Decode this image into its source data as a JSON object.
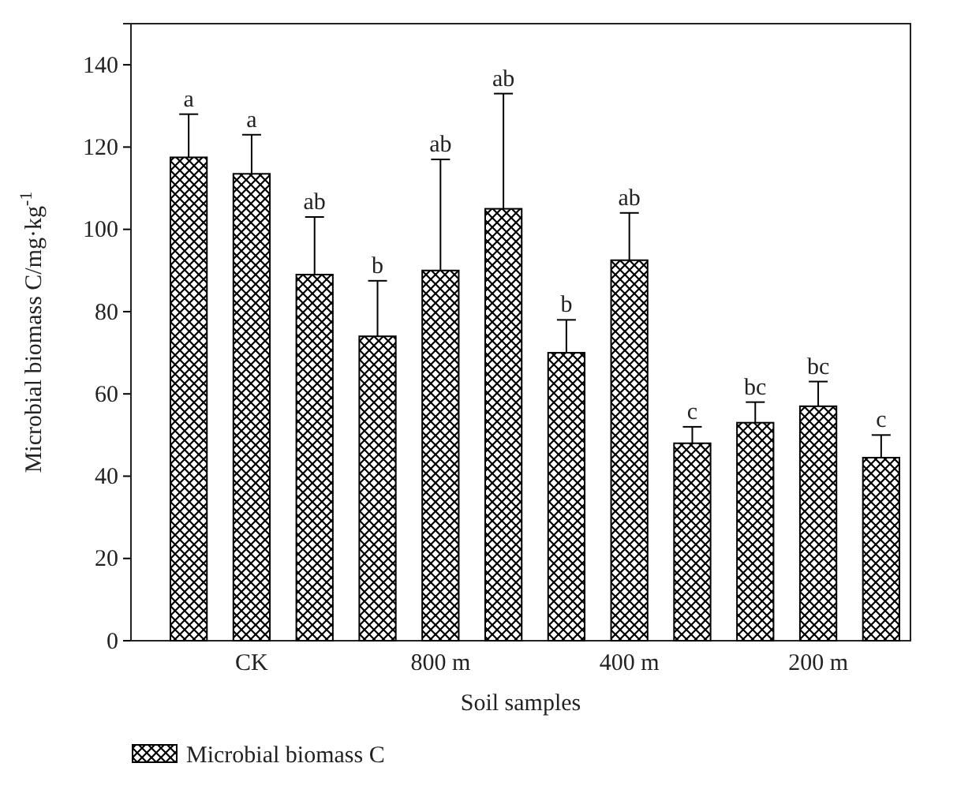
{
  "chart_data": {
    "type": "bar",
    "xlabel": "Soil samples",
    "ylabel": "Microbial biomass C/mg·kg$^{-1}$",
    "categories": [
      null,
      "CK",
      null,
      null,
      "800 m",
      null,
      null,
      "400 m",
      null,
      null,
      "200 m",
      null
    ],
    "series": [
      {
        "name": "Microbial biomass C",
        "color": "#000000",
        "values": [
          117.5,
          113.5,
          89,
          74,
          90,
          105,
          70,
          92.5,
          48,
          53,
          57,
          44.5
        ],
        "errors": [
          [
            117.5,
            128
          ],
          [
            113.5,
            123
          ],
          [
            89,
            103
          ],
          [
            74,
            87.5
          ],
          [
            90,
            117
          ],
          [
            105,
            133
          ],
          [
            70,
            78
          ],
          [
            92.5,
            104
          ],
          [
            48,
            52
          ],
          [
            53,
            58
          ],
          [
            57,
            63
          ],
          [
            44.5,
            50
          ]
        ]
      }
    ],
    "annotations": [
      "a",
      "a",
      "ab",
      "b",
      "ab",
      "ab",
      "b",
      "ab",
      "c",
      "bc",
      "bc",
      "c"
    ],
    "ylim": [
      0,
      150
    ],
    "yticks": [
      0,
      20,
      40,
      60,
      80,
      100,
      120,
      140
    ],
    "grid": false,
    "legend": "bottom left"
  }
}
